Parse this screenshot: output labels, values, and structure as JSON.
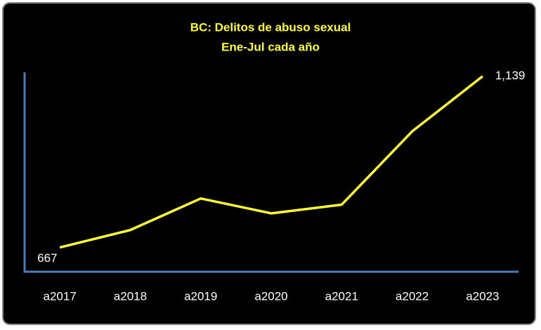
{
  "chart_data": {
    "type": "line",
    "title": "BC: Delitos de abuso sexual",
    "subtitle": "Ene-Jul cada año",
    "categories": [
      "a2017",
      "a2018",
      "a2019",
      "a2020",
      "a2021",
      "a2022",
      "a2023"
    ],
    "series": [
      {
        "color": "#ffff33",
        "values": [
          667,
          715,
          802,
          761,
          785,
          987,
          1139
        ],
        "value_labels": [
          "667",
          null,
          null,
          null,
          null,
          null,
          "1,139"
        ]
      }
    ],
    "ylim": [
      600,
      1150
    ]
  }
}
